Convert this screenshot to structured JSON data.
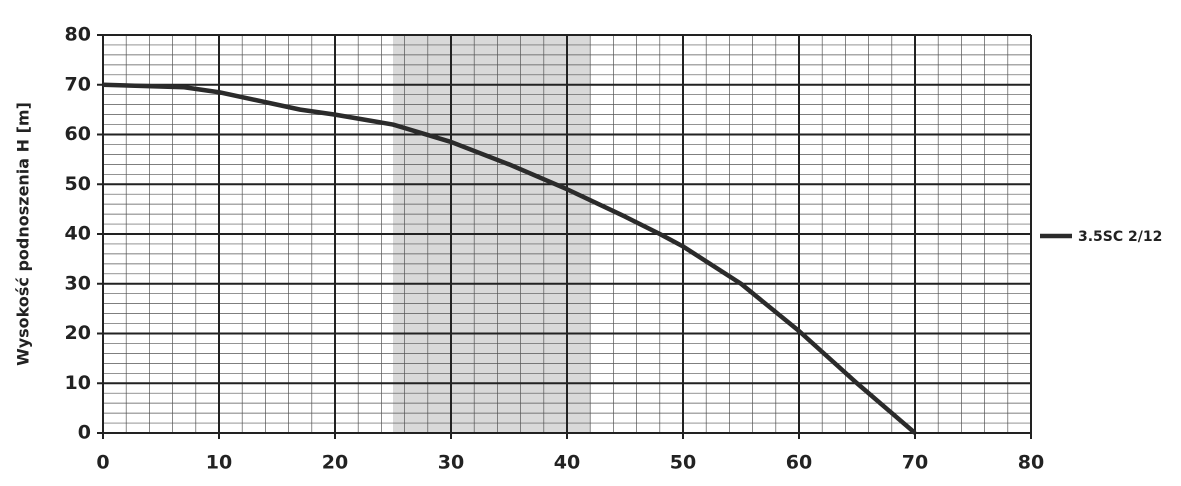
{
  "chart_data": {
    "type": "line",
    "y_label": "Wysokość podnoszenia H [m]",
    "x": [
      0,
      7,
      10,
      17,
      20,
      25,
      30,
      35,
      40,
      45,
      48,
      50,
      55,
      60,
      65,
      70
    ],
    "series": [
      {
        "name": "3.5SC 2/12",
        "color": "#2b2b2b",
        "values": [
          70,
          69.5,
          68.5,
          65,
          64,
          62,
          58.5,
          54,
          49,
          43.5,
          40,
          37.5,
          30,
          20.5,
          10,
          0
        ]
      }
    ],
    "highlight_x": [
      25,
      42
    ],
    "highlight_color": "#d9d9d9",
    "xlim": [
      0,
      80
    ],
    "xticks": [
      0,
      10,
      20,
      30,
      40,
      50,
      60,
      70,
      80
    ],
    "ylim": [
      0,
      80
    ],
    "yticks": [
      0,
      10,
      20,
      30,
      40,
      50,
      60,
      70,
      80
    ],
    "grid": true,
    "legend": "right"
  }
}
